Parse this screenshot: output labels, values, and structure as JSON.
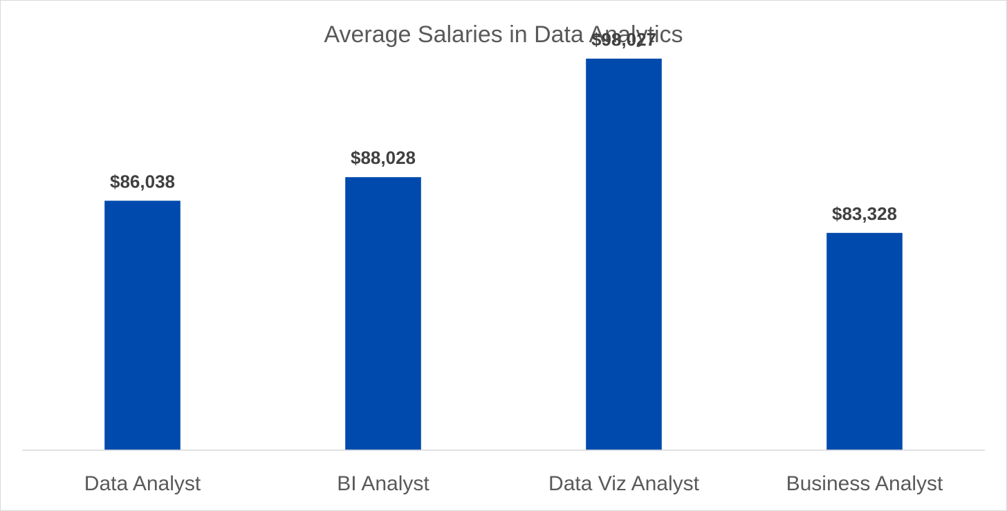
{
  "chart_data": {
    "type": "bar",
    "title": "Average Salaries in Data Analytics",
    "xlabel": "",
    "ylabel": "",
    "categories": [
      "Data Analyst",
      "BI Analyst",
      "Data Viz Analyst",
      "Business Analyst"
    ],
    "values": [
      86038,
      88028,
      98027,
      83328
    ],
    "data_labels": [
      "$86,038",
      "$88,028",
      "$98,027",
      "$83,328"
    ],
    "ylim": [
      65000,
      100000
    ],
    "grid": false,
    "legend": "none",
    "bar_color": "#004AAD"
  }
}
